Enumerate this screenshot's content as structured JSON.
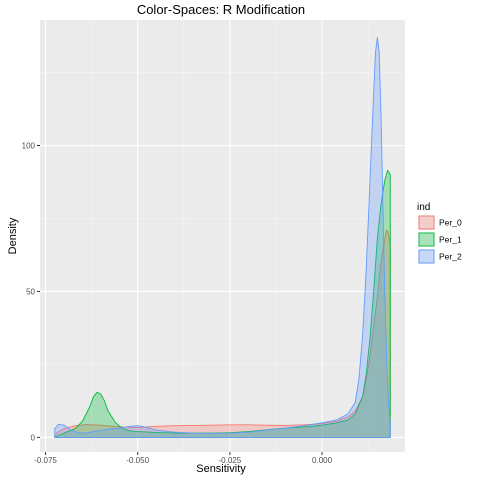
{
  "chart_data": {
    "type": "area",
    "title": "Color-Spaces: R Modification",
    "xlabel": "Sensitivity",
    "ylabel": "Density",
    "xlim": [
      -0.0765,
      0.0225
    ],
    "ylim": [
      -5,
      143
    ],
    "x_ticks": [
      -0.075,
      -0.05,
      -0.025,
      0.0
    ],
    "x_tick_labels": [
      "-0.075",
      "-0.050",
      "-0.025",
      "0.000"
    ],
    "y_ticks": [
      0,
      50,
      100
    ],
    "y_tick_labels": [
      "0",
      "50",
      "100"
    ],
    "grid": true,
    "legend": {
      "title": "ind",
      "placement": "right"
    },
    "series": [
      {
        "name": "Per_0",
        "color": "#F8766D",
        "fill": "#F8766D",
        "points": [
          [
            -0.0725,
            0
          ],
          [
            -0.072,
            1.5
          ],
          [
            -0.07,
            3.0
          ],
          [
            -0.067,
            4.0
          ],
          [
            -0.064,
            4.4
          ],
          [
            -0.06,
            4.2
          ],
          [
            -0.055,
            3.6
          ],
          [
            -0.05,
            3.4
          ],
          [
            -0.045,
            3.8
          ],
          [
            -0.04,
            4.0
          ],
          [
            -0.035,
            4.1
          ],
          [
            -0.03,
            4.2
          ],
          [
            -0.025,
            4.3
          ],
          [
            -0.02,
            4.3
          ],
          [
            -0.015,
            4.2
          ],
          [
            -0.01,
            4.1
          ],
          [
            -0.005,
            4.3
          ],
          [
            0.0,
            4.7
          ],
          [
            0.004,
            5.5
          ],
          [
            0.007,
            7.0
          ],
          [
            0.009,
            9.0
          ],
          [
            0.011,
            14
          ],
          [
            0.012,
            20
          ],
          [
            0.013,
            28
          ],
          [
            0.014,
            38
          ],
          [
            0.015,
            48
          ],
          [
            0.016,
            60
          ],
          [
            0.017,
            68
          ],
          [
            0.0175,
            71
          ],
          [
            0.018,
            70
          ],
          [
            0.0185,
            66
          ],
          [
            0.0185,
            0
          ]
        ]
      },
      {
        "name": "Per_1",
        "color": "#00BA38",
        "fill": "#00BA38",
        "points": [
          [
            -0.0725,
            0
          ],
          [
            -0.071,
            1.0
          ],
          [
            -0.069,
            2.0
          ],
          [
            -0.067,
            3.0
          ],
          [
            -0.065,
            5.5
          ],
          [
            -0.063,
            10.5
          ],
          [
            -0.062,
            14.0
          ],
          [
            -0.061,
            15.5
          ],
          [
            -0.06,
            14.8
          ],
          [
            -0.059,
            12.5
          ],
          [
            -0.058,
            9.0
          ],
          [
            -0.056,
            5.0
          ],
          [
            -0.054,
            3.0
          ],
          [
            -0.052,
            2.2
          ],
          [
            -0.05,
            2.0
          ],
          [
            -0.045,
            1.7
          ],
          [
            -0.04,
            1.5
          ],
          [
            -0.035,
            1.5
          ],
          [
            -0.03,
            1.5
          ],
          [
            -0.025,
            1.6
          ],
          [
            -0.02,
            2.0
          ],
          [
            -0.015,
            2.6
          ],
          [
            -0.01,
            3.2
          ],
          [
            -0.005,
            3.6
          ],
          [
            0.0,
            4.2
          ],
          [
            0.004,
            5.0
          ],
          [
            0.007,
            6.0
          ],
          [
            0.009,
            8.0
          ],
          [
            0.011,
            14
          ],
          [
            0.012,
            22
          ],
          [
            0.013,
            34
          ],
          [
            0.014,
            50
          ],
          [
            0.015,
            68
          ],
          [
            0.016,
            80
          ],
          [
            0.017,
            88
          ],
          [
            0.0178,
            91.5
          ],
          [
            0.0185,
            90
          ],
          [
            0.0185,
            0
          ]
        ]
      },
      {
        "name": "Per_2",
        "color": "#619CFF",
        "fill": "#619CFF",
        "points": [
          [
            -0.0725,
            0
          ],
          [
            -0.0725,
            3.0
          ],
          [
            -0.0715,
            4.5
          ],
          [
            -0.07,
            4.2
          ],
          [
            -0.068,
            2.5
          ],
          [
            -0.066,
            1.5
          ],
          [
            -0.064,
            1.5
          ],
          [
            -0.062,
            2.0
          ],
          [
            -0.058,
            2.8
          ],
          [
            -0.055,
            3.2
          ],
          [
            -0.052,
            3.8
          ],
          [
            -0.05,
            4.0
          ],
          [
            -0.048,
            3.6
          ],
          [
            -0.045,
            2.5
          ],
          [
            -0.04,
            1.8
          ],
          [
            -0.035,
            1.5
          ],
          [
            -0.03,
            1.4
          ],
          [
            -0.025,
            1.5
          ],
          [
            -0.02,
            1.8
          ],
          [
            -0.015,
            2.5
          ],
          [
            -0.01,
            3.2
          ],
          [
            -0.005,
            4.0
          ],
          [
            0.0,
            5.0
          ],
          [
            0.004,
            6.0
          ],
          [
            0.007,
            8.0
          ],
          [
            0.009,
            12
          ],
          [
            0.01,
            20
          ],
          [
            0.011,
            35
          ],
          [
            0.012,
            58
          ],
          [
            0.013,
            88
          ],
          [
            0.014,
            118
          ],
          [
            0.0145,
            132
          ],
          [
            0.015,
            137
          ],
          [
            0.0155,
            132
          ],
          [
            0.016,
            110
          ],
          [
            0.0165,
            80
          ],
          [
            0.017,
            50
          ],
          [
            0.0175,
            28
          ],
          [
            0.018,
            12
          ],
          [
            0.0185,
            5
          ],
          [
            0.0185,
            0
          ]
        ]
      }
    ]
  }
}
